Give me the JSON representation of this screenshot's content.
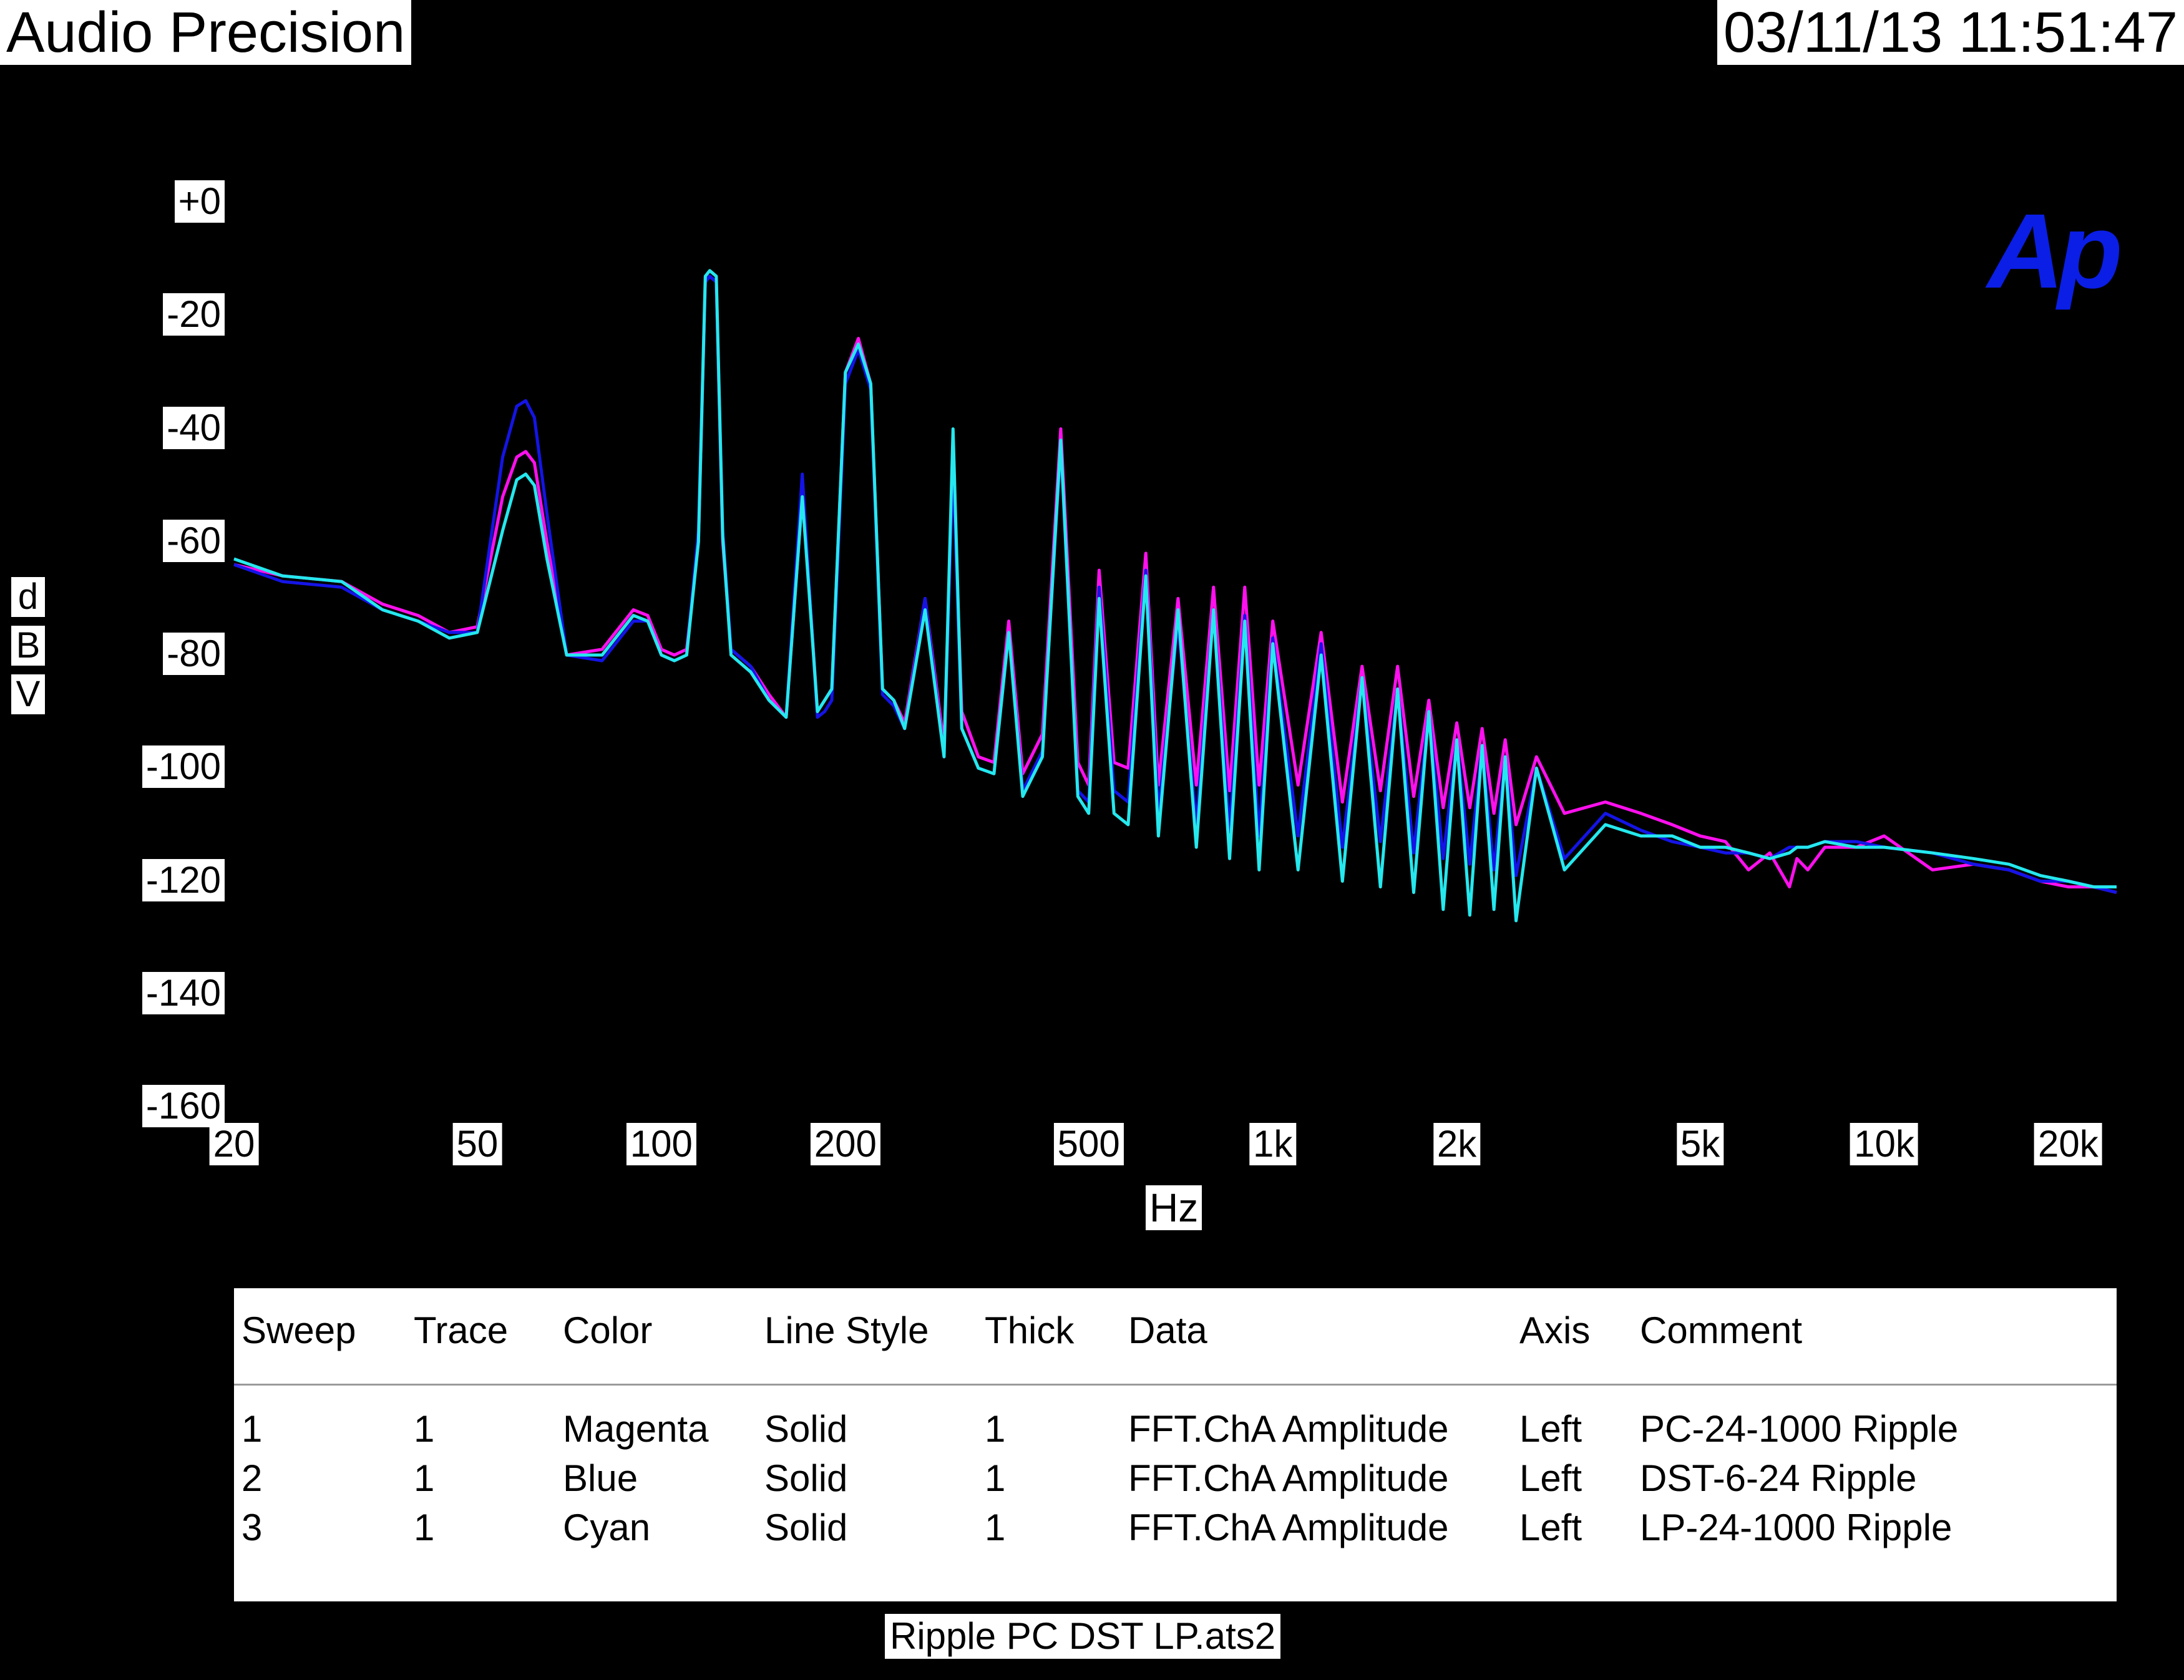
{
  "header": {
    "title": "Audio Precision",
    "datetime": "03/11/13 11:51:47"
  },
  "logo_text": "Ap",
  "colors": {
    "magenta": "#ff10ee",
    "blue": "#1414e6",
    "cyan": "#25e8ee",
    "background": "#000000",
    "logo": "#0a1ee6"
  },
  "chart_data": {
    "type": "line",
    "xscale": "log",
    "xlim": [
      20,
      24000
    ],
    "ylim": [
      -160,
      0
    ],
    "ylabel": [
      "d",
      "B",
      "V"
    ],
    "xlabel": "Hz",
    "yticks": [
      {
        "value": 0,
        "label": "+0"
      },
      {
        "value": -20,
        "label": "-20"
      },
      {
        "value": -40,
        "label": "-40"
      },
      {
        "value": -60,
        "label": "-60"
      },
      {
        "value": -80,
        "label": "-80"
      },
      {
        "value": -100,
        "label": "-100"
      },
      {
        "value": -120,
        "label": "-120"
      },
      {
        "value": -140,
        "label": "-140"
      },
      {
        "value": -160,
        "label": "-160"
      }
    ],
    "xticks": [
      {
        "value": 20,
        "label": "20"
      },
      {
        "value": 50,
        "label": "50"
      },
      {
        "value": 100,
        "label": "100"
      },
      {
        "value": 200,
        "label": "200"
      },
      {
        "value": 500,
        "label": "500"
      },
      {
        "value": 1000,
        "label": "1k"
      },
      {
        "value": 2000,
        "label": "2k"
      },
      {
        "value": 5000,
        "label": "5k"
      },
      {
        "value": 10000,
        "label": "10k"
      },
      {
        "value": 20000,
        "label": "20k"
      }
    ],
    "series": [
      {
        "name": "PC-24-1000 Ripple",
        "color": "#ff10ee",
        "x": [
          20,
          24,
          30,
          35,
          40,
          45,
          50,
          55,
          58,
          60,
          62,
          65,
          70,
          80,
          90,
          95,
          100,
          105,
          110,
          115,
          118,
          120,
          123,
          126,
          130,
          140,
          150,
          160,
          170,
          175,
          180,
          185,
          190,
          200,
          210,
          220,
          230,
          240,
          250,
          270,
          290,
          300,
          310,
          330,
          350,
          370,
          390,
          420,
          450,
          480,
          500,
          520,
          550,
          580,
          620,
          650,
          700,
          750,
          800,
          850,
          900,
          950,
          1000,
          1100,
          1200,
          1300,
          1400,
          1500,
          1600,
          1700,
          1800,
          1900,
          2000,
          2100,
          2200,
          2300,
          2400,
          2500,
          2700,
          3000,
          3500,
          4000,
          4500,
          5000,
          5500,
          6000,
          6500,
          7000,
          7200,
          7500,
          8000,
          9000,
          10000,
          12000,
          14000,
          16000,
          18000,
          20000,
          22000,
          24000
        ],
        "y": [
          -64,
          -66,
          -67,
          -71,
          -73,
          -76,
          -75,
          -52,
          -45,
          -44,
          -46,
          -60,
          -80,
          -79,
          -72,
          -73,
          -79,
          -80,
          -79,
          -60,
          -14,
          -13,
          -14,
          -60,
          -79,
          -82,
          -87,
          -91,
          -52,
          -70,
          -90,
          -88,
          -86,
          -30,
          -24,
          -32,
          -86,
          -88,
          -92,
          -70,
          -96,
          -46,
          -90,
          -98,
          -99,
          -74,
          -101,
          -94,
          -40,
          -99,
          -103,
          -65,
          -99,
          -100,
          -62,
          -103,
          -70,
          -103,
          -68,
          -104,
          -68,
          -103,
          -74,
          -103,
          -76,
          -106,
          -82,
          -104,
          -82,
          -105,
          -88,
          -107,
          -92,
          -107,
          -93,
          -108,
          -95,
          -110,
          -98,
          -108,
          -106,
          -108,
          -110,
          -112,
          -113,
          -118,
          -115,
          -121,
          -116,
          -118,
          -114,
          -114,
          -112,
          -118,
          -117,
          -118,
          -120,
          -121,
          -121,
          -122
        ]
      },
      {
        "name": "DST-6-24 Ripple",
        "color": "#1414e6",
        "x": [
          20,
          24,
          30,
          35,
          40,
          45,
          50,
          55,
          58,
          60,
          62,
          65,
          70,
          80,
          90,
          95,
          100,
          105,
          110,
          115,
          118,
          120,
          123,
          126,
          130,
          140,
          150,
          160,
          170,
          175,
          180,
          185,
          190,
          200,
          210,
          220,
          230,
          240,
          250,
          270,
          290,
          300,
          310,
          330,
          350,
          370,
          390,
          420,
          450,
          480,
          500,
          520,
          550,
          580,
          620,
          650,
          700,
          750,
          800,
          850,
          900,
          950,
          1000,
          1100,
          1200,
          1300,
          1400,
          1500,
          1600,
          1700,
          1800,
          1900,
          2000,
          2100,
          2200,
          2300,
          2400,
          2500,
          2700,
          3000,
          3500,
          4000,
          4500,
          5000,
          5500,
          6000,
          6500,
          7000,
          7200,
          7500,
          8000,
          9000,
          10000,
          12000,
          14000,
          16000,
          18000,
          20000,
          22000,
          24000
        ],
        "y": [
          -64,
          -67,
          -68,
          -72,
          -74,
          -76,
          -76,
          -45,
          -36,
          -35,
          -38,
          -55,
          -80,
          -81,
          -74,
          -74,
          -80,
          -81,
          -80,
          -58,
          -14,
          -13,
          -14,
          -58,
          -79,
          -82,
          -88,
          -91,
          -48,
          -70,
          -91,
          -90,
          -88,
          -32,
          -26,
          -33,
          -87,
          -89,
          -93,
          -70,
          -98,
          -46,
          -93,
          -100,
          -101,
          -76,
          -104,
          -97,
          -43,
          -104,
          -106,
          -68,
          -104,
          -106,
          -65,
          -108,
          -74,
          -110,
          -72,
          -111,
          -73,
          -112,
          -77,
          -112,
          -78,
          -114,
          -84,
          -113,
          -86,
          -115,
          -90,
          -116,
          -95,
          -117,
          -96,
          -118,
          -98,
          -119,
          -100,
          -116,
          -108,
          -111,
          -113,
          -114,
          -115,
          -115,
          -116,
          -114,
          -114,
          -114,
          -113,
          -113,
          -114,
          -115,
          -117,
          -118,
          -120,
          -120,
          -121,
          -122
        ]
      },
      {
        "name": "LP-24-1000 Ripple",
        "color": "#25e8ee",
        "x": [
          20,
          24,
          30,
          35,
          40,
          45,
          50,
          55,
          58,
          60,
          62,
          65,
          70,
          80,
          90,
          95,
          100,
          105,
          110,
          115,
          118,
          120,
          123,
          126,
          130,
          140,
          150,
          160,
          170,
          175,
          180,
          185,
          190,
          200,
          210,
          220,
          230,
          240,
          250,
          270,
          290,
          300,
          310,
          330,
          350,
          370,
          390,
          420,
          450,
          480,
          500,
          520,
          550,
          580,
          620,
          650,
          700,
          750,
          800,
          850,
          900,
          950,
          1000,
          1100,
          1200,
          1300,
          1400,
          1500,
          1600,
          1700,
          1800,
          1900,
          2000,
          2100,
          2200,
          2300,
          2400,
          2500,
          2700,
          3000,
          3500,
          4000,
          4500,
          5000,
          5500,
          6000,
          6500,
          7000,
          7200,
          7500,
          8000,
          9000,
          10000,
          12000,
          14000,
          16000,
          18000,
          20000,
          22000,
          24000
        ],
        "y": [
          -63,
          -66,
          -67,
          -72,
          -74,
          -77,
          -76,
          -58,
          -49,
          -48,
          -50,
          -63,
          -80,
          -80,
          -73,
          -74,
          -80,
          -81,
          -80,
          -60,
          -13,
          -12,
          -13,
          -59,
          -80,
          -83,
          -88,
          -91,
          -52,
          -71,
          -90,
          -88,
          -86,
          -30,
          -25,
          -32,
          -86,
          -88,
          -93,
          -72,
          -98,
          -40,
          -93,
          -100,
          -101,
          -76,
          -105,
          -98,
          -42,
          -105,
          -108,
          -70,
          -108,
          -110,
          -66,
          -112,
          -72,
          -114,
          -72,
          -116,
          -74,
          -118,
          -78,
          -118,
          -80,
          -120,
          -84,
          -121,
          -86,
          -122,
          -90,
          -125,
          -95,
          -126,
          -96,
          -125,
          -98,
          -127,
          -100,
          -118,
          -110,
          -112,
          -112,
          -114,
          -114,
          -115,
          -116,
          -115,
          -114,
          -114,
          -113,
          -114,
          -114,
          -115,
          -116,
          -117,
          -119,
          -120,
          -121,
          -121
        ]
      }
    ]
  },
  "legend": {
    "headers": [
      "Sweep",
      "Trace",
      "Color",
      "Line Style",
      "Thick",
      "Data",
      "Axis",
      "Comment"
    ],
    "rows": [
      [
        "1",
        "1",
        "Magenta",
        "Solid",
        "1",
        "FFT.ChA Amplitude",
        "Left",
        "PC-24-1000 Ripple"
      ],
      [
        "2",
        "1",
        "Blue",
        "Solid",
        "1",
        "FFT.ChA Amplitude",
        "Left",
        "DST-6-24 Ripple"
      ],
      [
        "3",
        "1",
        "Cyan",
        "Solid",
        "1",
        "FFT.ChA Amplitude",
        "Left",
        "LP-24-1000 Ripple"
      ]
    ]
  },
  "footer": {
    "filename": "Ripple PC DST LP.ats2"
  }
}
